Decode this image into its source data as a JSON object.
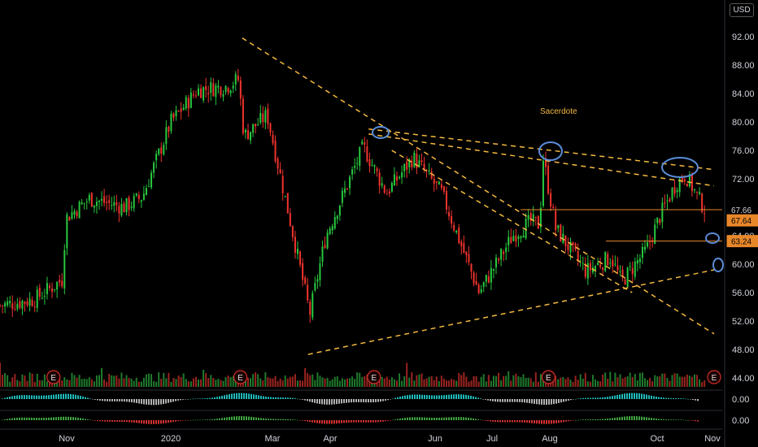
{
  "currency": "USD",
  "annotation": "Sacerdote",
  "colors": {
    "up": "#27c93f",
    "down": "#f0332e",
    "trendline": "#f5b940",
    "level": "#e8872a",
    "circle": "#5b8dd9",
    "osc_up": "#1fb8b8",
    "osc_down": "#b0b0b0",
    "osc2_up": "#3fa13f",
    "osc2_down": "#d03030",
    "earnings": "#d2302c"
  },
  "price_tags": [
    {
      "value": "67.66",
      "style": "plain"
    },
    {
      "value": "67.64",
      "style": "orange"
    },
    {
      "value": "63.24",
      "style": "orange"
    }
  ],
  "osc_labels": [
    "0.00",
    "0.00"
  ],
  "earnings_label": "E",
  "chart_data": {
    "type": "candlestick",
    "y_axis": {
      "range": [
        44,
        94
      ],
      "ticks": [
        "92.00",
        "88.00",
        "84.00",
        "80.00",
        "76.00",
        "72.00",
        "68.00",
        "64.00",
        "60.00",
        "56.00",
        "52.00",
        "48.00",
        "44.00"
      ]
    },
    "x_axis": {
      "labels": [
        "Nov",
        "2020",
        "Mar",
        "Apr",
        "Jun",
        "Jul",
        "Aug",
        "Oct",
        "Nov"
      ]
    },
    "anchors": [
      [
        "2019-10-01",
        54.2
      ],
      [
        "2019-10-20",
        55.0
      ],
      [
        "2019-11-05",
        57.8
      ],
      [
        "2019-11-07",
        66.5
      ],
      [
        "2019-11-20",
        69.2
      ],
      [
        "2019-12-10",
        68.0
      ],
      [
        "2019-12-20",
        69.5
      ],
      [
        "2020-01-05",
        80.0
      ],
      [
        "2020-01-20",
        84.5
      ],
      [
        "2020-02-05",
        85.0
      ],
      [
        "2020-02-12",
        86.0
      ],
      [
        "2020-02-15",
        78.0
      ],
      [
        "2020-02-28",
        81.0
      ],
      [
        "2020-03-12",
        66.0
      ],
      [
        "2020-03-23",
        53.0
      ],
      [
        "2020-04-01",
        64.0
      ],
      [
        "2020-04-22",
        76.5
      ],
      [
        "2020-05-05",
        70.0
      ],
      [
        "2020-05-20",
        75.0
      ],
      [
        "2020-06-05",
        70.0
      ],
      [
        "2020-06-26",
        56.0
      ],
      [
        "2020-07-15",
        64.0
      ],
      [
        "2020-07-25",
        66.0
      ],
      [
        "2020-07-30",
        65.5
      ],
      [
        "2020-08-01",
        75.0
      ],
      [
        "2020-08-08",
        65.0
      ],
      [
        "2020-08-25",
        59.0
      ],
      [
        "2020-09-08",
        61.0
      ],
      [
        "2020-09-14",
        57.5
      ],
      [
        "2020-09-28",
        62.0
      ],
      [
        "2020-10-06",
        67.0
      ],
      [
        "2020-10-15",
        71.5
      ],
      [
        "2020-10-20",
        72.5
      ],
      [
        "2020-10-31",
        67.6
      ]
    ],
    "extremes": {
      "high": "91.80",
      "low": "47.30"
    },
    "levels": [
      67.66,
      63.24
    ],
    "trendlines": [
      {
        "from": [
          "2020-02-14",
          91.8
        ],
        "to": [
          "2020-11-05",
          50.2
        ]
      },
      {
        "from": [
          "2020-04-25",
          79.0
        ],
        "to": [
          "2020-11-05",
          73.3
        ]
      },
      {
        "from": [
          "2020-04-25",
          78.3
        ],
        "to": [
          "2020-11-05",
          71.0
        ]
      },
      {
        "from": [
          "2020-03-22",
          47.3
        ],
        "to": [
          "2020-11-05",
          59.2
        ]
      },
      {
        "from": [
          "2020-05-08",
          76.0
        ],
        "to": [
          "2020-09-20",
          56.0
        ]
      }
    ],
    "earnings_dates": [
      "2019-10-31",
      "2020-02-13",
      "2020-04-28",
      "2020-08-04",
      "2020-11-05"
    ]
  }
}
